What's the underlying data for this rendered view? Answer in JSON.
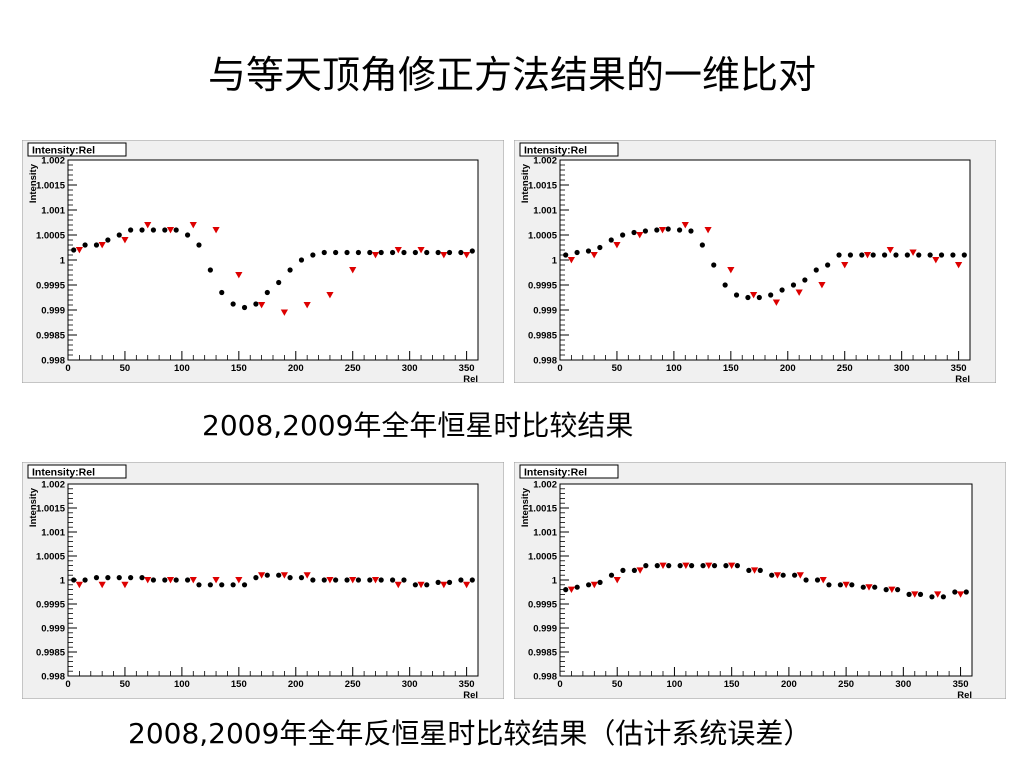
{
  "slide": {
    "title": "与等天顶角修正方法结果的一维比对",
    "caption_top": "2008,2009年全年恒星时比较结果",
    "caption_bottom": "2008,2009年全年反恒星时比较结果（估计系统误差）"
  },
  "colors": {
    "panel_bg": "#f0f0f0",
    "frame_bg": "#ffffff",
    "series_black": "#000000",
    "series_red": "#dd0000"
  },
  "chart_data": [
    {
      "type": "scatter",
      "title": "Intensity:Rel",
      "xlabel": "Rel",
      "ylabel": "Intensity",
      "xlim": [
        0,
        360
      ],
      "ylim": [
        0.998,
        1.002
      ],
      "xticks": [
        0,
        50,
        100,
        150,
        200,
        250,
        300,
        350
      ],
      "yticks": [
        0.998,
        0.9985,
        0.999,
        0.9995,
        1,
        1.0005,
        1.001,
        1.0015,
        1.002
      ],
      "ytick_labels": [
        "0.998",
        "0.9985",
        "0.999",
        "0.9995",
        "1",
        "1.0005",
        "1.001",
        "1.0015",
        "1.002"
      ],
      "series": [
        {
          "marker": "circle",
          "color": "#000000",
          "x": [
            5,
            15,
            25,
            35,
            45,
            55,
            65,
            75,
            85,
            95,
            105,
            115,
            125,
            135,
            145,
            155,
            165,
            175,
            185,
            195,
            205,
            215,
            225,
            235,
            245,
            255,
            265,
            275,
            285,
            295,
            305,
            315,
            325,
            335,
            345,
            355
          ],
          "y": [
            1.0002,
            1.0003,
            1.0003,
            1.0004,
            1.0005,
            1.0006,
            1.0006,
            1.0006,
            1.0006,
            1.0006,
            1.0005,
            1.0003,
            0.9998,
            0.99935,
            0.99912,
            0.99905,
            0.99912,
            0.99935,
            0.99955,
            0.9998,
            1,
            1.0001,
            1.00015,
            1.00015,
            1.00015,
            1.00015,
            1.00015,
            1.00015,
            1.00015,
            1.00015,
            1.00015,
            1.00015,
            1.00015,
            1.00015,
            1.00015,
            1.00018
          ]
        },
        {
          "marker": "triangle-down",
          "color": "#dd0000",
          "x": [
            10,
            30,
            50,
            70,
            90,
            110,
            130,
            150,
            170,
            190,
            210,
            230,
            250,
            270,
            290,
            310,
            330,
            350
          ],
          "y": [
            1.0002,
            1.0003,
            1.0004,
            1.0007,
            1.0006,
            1.0007,
            1.0006,
            0.9997,
            0.9991,
            0.99895,
            0.9991,
            0.9993,
            0.9998,
            1.0001,
            1.0002,
            1.0002,
            1.0001,
            1.0001
          ]
        }
      ]
    },
    {
      "type": "scatter",
      "title": "Intensity:Rel",
      "xlabel": "Rel",
      "ylabel": "Intensity",
      "xlim": [
        0,
        360
      ],
      "ylim": [
        0.998,
        1.002
      ],
      "xticks": [
        0,
        50,
        100,
        150,
        200,
        250,
        300,
        350
      ],
      "yticks": [
        0.998,
        0.9985,
        0.999,
        0.9995,
        1,
        1.0005,
        1.001,
        1.0015,
        1.002
      ],
      "ytick_labels": [
        "0.998",
        "0.9985",
        "0.999",
        "0.9995",
        "1",
        "1.0005",
        "1.001",
        "1.0015",
        "1.002"
      ],
      "series": [
        {
          "marker": "circle",
          "color": "#000000",
          "x": [
            5,
            15,
            25,
            35,
            45,
            55,
            65,
            75,
            85,
            95,
            105,
            115,
            125,
            135,
            145,
            155,
            165,
            175,
            185,
            195,
            205,
            215,
            225,
            235,
            245,
            255,
            265,
            275,
            285,
            295,
            305,
            315,
            325,
            335,
            345,
            355
          ],
          "y": [
            1.0001,
            1.00015,
            1.00018,
            1.00025,
            1.0004,
            1.0005,
            1.00055,
            1.00058,
            1.0006,
            1.00062,
            1.0006,
            1.00058,
            1.0003,
            0.9999,
            0.9995,
            0.9993,
            0.99925,
            0.99925,
            0.9993,
            0.9994,
            0.9995,
            0.9996,
            0.9998,
            0.9999,
            1.0001,
            1.0001,
            1.0001,
            1.0001,
            1.0001,
            1.0001,
            1.0001,
            1.0001,
            1.0001,
            1.0001,
            1.0001,
            1.0001
          ]
        },
        {
          "marker": "triangle-down",
          "color": "#dd0000",
          "x": [
            10,
            30,
            50,
            70,
            90,
            110,
            130,
            150,
            170,
            190,
            210,
            230,
            250,
            270,
            290,
            310,
            330,
            350
          ],
          "y": [
            1.0,
            1.0001,
            1.0003,
            1.0005,
            1.0006,
            1.0007,
            1.0006,
            0.9998,
            0.9993,
            0.99915,
            0.99935,
            0.9995,
            0.9999,
            1.0001,
            1.0002,
            1.00015,
            1.0,
            0.9999
          ]
        }
      ]
    },
    {
      "type": "scatter",
      "title": "Intensity:Rel",
      "xlabel": "Rel",
      "ylabel": "Intensity",
      "xlim": [
        0,
        360
      ],
      "ylim": [
        0.998,
        1.002
      ],
      "xticks": [
        0,
        50,
        100,
        150,
        200,
        250,
        300,
        350
      ],
      "yticks": [
        0.998,
        0.9985,
        0.999,
        0.9995,
        1,
        1.0005,
        1.001,
        1.0015,
        1.002
      ],
      "ytick_labels": [
        "0.998",
        "0.9985",
        "0.999",
        "0.9995",
        "1",
        "1.0005",
        "1.001",
        "1.0015",
        "1.002"
      ],
      "series": [
        {
          "marker": "circle",
          "color": "#000000",
          "x": [
            5,
            15,
            25,
            35,
            45,
            55,
            65,
            75,
            85,
            95,
            105,
            115,
            125,
            135,
            145,
            155,
            165,
            175,
            185,
            195,
            205,
            215,
            225,
            235,
            245,
            255,
            265,
            275,
            285,
            295,
            305,
            315,
            325,
            335,
            345,
            355
          ],
          "y": [
            1.0,
            1.0,
            1.00005,
            1.00005,
            1.00005,
            1.00005,
            1.00005,
            1.0,
            1.0,
            1.0,
            1.0,
            0.9999,
            0.9999,
            0.9999,
            0.9999,
            0.9999,
            1.00005,
            1.0001,
            1.0001,
            1.00005,
            1.00005,
            1.0,
            1.0,
            1.0,
            1.0,
            1.0,
            1.0,
            1.0,
            1.0,
            1.0,
            0.9999,
            0.9999,
            0.99995,
            0.99995,
            1.0,
            1.0
          ]
        },
        {
          "marker": "triangle-down",
          "color": "#dd0000",
          "x": [
            10,
            30,
            50,
            70,
            90,
            110,
            130,
            150,
            170,
            190,
            210,
            230,
            250,
            270,
            290,
            310,
            330,
            350
          ],
          "y": [
            0.9999,
            0.9999,
            0.9999,
            1.0,
            1.0,
            1.0,
            1.0,
            1.0,
            1.0001,
            1.0001,
            1.0001,
            1.0,
            1.0,
            1.0,
            0.9999,
            0.9999,
            0.9999,
            0.9999
          ]
        }
      ]
    },
    {
      "type": "scatter",
      "title": "Intensity:Rel",
      "xlabel": "Rel",
      "ylabel": "Intensity",
      "xlim": [
        0,
        360
      ],
      "ylim": [
        0.998,
        1.002
      ],
      "xticks": [
        0,
        50,
        100,
        150,
        200,
        250,
        300,
        350
      ],
      "yticks": [
        0.998,
        0.9985,
        0.999,
        0.9995,
        1,
        1.0005,
        1.001,
        1.0015,
        1.002
      ],
      "ytick_labels": [
        "0.998",
        "0.9985",
        "0.999",
        "0.9995",
        "1",
        "1.0005",
        "1.001",
        "1.0015",
        "1.002"
      ],
      "series": [
        {
          "marker": "circle",
          "color": "#000000",
          "x": [
            5,
            15,
            25,
            35,
            45,
            55,
            65,
            75,
            85,
            95,
            105,
            115,
            125,
            135,
            145,
            155,
            165,
            175,
            185,
            195,
            205,
            215,
            225,
            235,
            245,
            255,
            265,
            275,
            285,
            295,
            305,
            315,
            325,
            335,
            345,
            355
          ],
          "y": [
            0.9998,
            0.99985,
            0.9999,
            0.99995,
            1.0001,
            1.0002,
            1.0002,
            1.0003,
            1.0003,
            1.0003,
            1.0003,
            1.0003,
            1.0003,
            1.0003,
            1.0003,
            1.0003,
            1.0002,
            1.0002,
            1.0001,
            1.0001,
            1.0001,
            1.0,
            1.0,
            0.9999,
            0.9999,
            0.9999,
            0.99985,
            0.99985,
            0.9998,
            0.9998,
            0.9997,
            0.9997,
            0.99965,
            0.99965,
            0.99975,
            0.99975
          ]
        },
        {
          "marker": "triangle-down",
          "color": "#dd0000",
          "x": [
            10,
            30,
            50,
            70,
            90,
            110,
            130,
            150,
            170,
            190,
            210,
            230,
            250,
            270,
            290,
            310,
            330,
            350
          ],
          "y": [
            0.9998,
            0.9999,
            1.0,
            1.0002,
            1.0003,
            1.0003,
            1.0003,
            1.0003,
            1.0002,
            1.0001,
            1.0001,
            1.0,
            0.9999,
            0.99985,
            0.9998,
            0.9997,
            0.9997,
            0.9997
          ]
        }
      ]
    }
  ]
}
